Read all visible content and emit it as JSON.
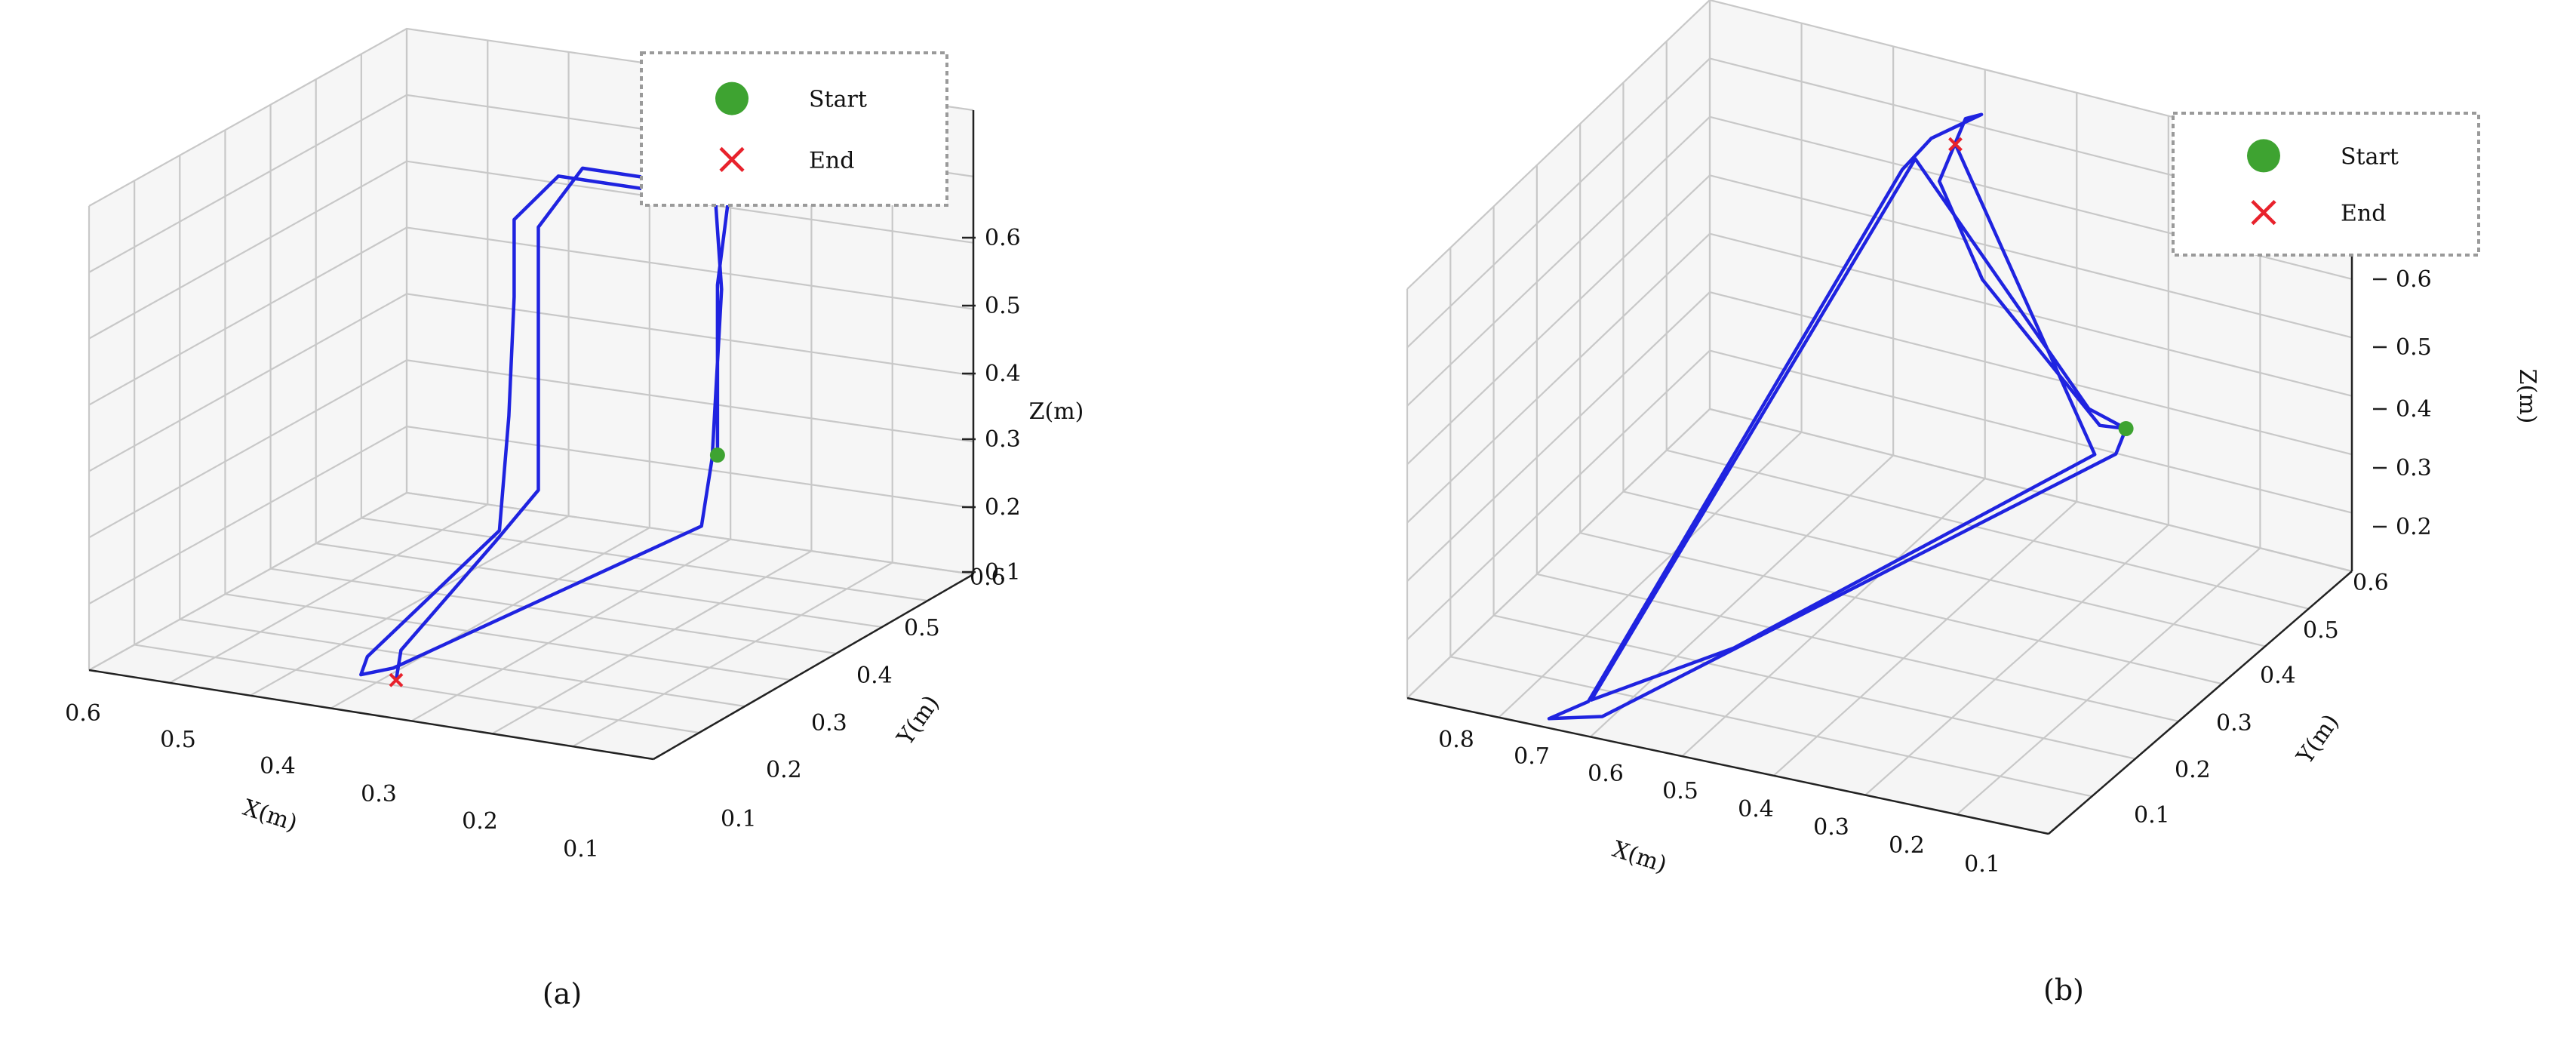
{
  "colors": {
    "trajectory": "#1f23e0",
    "start": "#3ea331",
    "end": "#e8222c",
    "pane": "#ececec",
    "grid": "#c8c8c8"
  },
  "chart_data": [
    {
      "type": "line",
      "subtype": "3d-trajectory",
      "panel_label": "(a)",
      "xlabel": "X(m)",
      "ylabel": "Y(m)",
      "zlabel": "Z(m)",
      "x_ticks": [
        "0.6",
        "0.5",
        "0.4",
        "0.3",
        "0.2",
        "0.1"
      ],
      "y_ticks": [
        "0.1",
        "0.2",
        "0.3",
        "0.4",
        "0.5",
        "0.6"
      ],
      "z_ticks": [
        "0.6",
        "0.5",
        "0.4",
        "0.3",
        "0.2",
        "0.1"
      ],
      "xlim": [
        0.05,
        0.65
      ],
      "ylim": [
        0.05,
        0.65
      ],
      "zlim": [
        0.05,
        0.65
      ],
      "grid": true,
      "legend": {
        "position": "top-right",
        "entries": [
          {
            "label": "Start",
            "marker": "circle"
          },
          {
            "label": "End",
            "marker": "x"
          }
        ]
      },
      "start": {
        "x": 0.18,
        "y": 0.4,
        "z": 0.28
      },
      "end": {
        "x": 0.38,
        "y": 0.15,
        "z": 0.05
      },
      "trajectory": [
        [
          0.18,
          0.4,
          0.28
        ],
        [
          0.18,
          0.4,
          0.5
        ],
        [
          0.18,
          0.42,
          0.6
        ],
        [
          0.36,
          0.42,
          0.6
        ],
        [
          0.39,
          0.39,
          0.55
        ],
        [
          0.39,
          0.39,
          0.45
        ],
        [
          0.39,
          0.38,
          0.3
        ],
        [
          0.4,
          0.38,
          0.15
        ],
        [
          0.45,
          0.22,
          0.04
        ],
        [
          0.44,
          0.19,
          0.03
        ],
        [
          0.4,
          0.18,
          0.05
        ],
        [
          0.18,
          0.37,
          0.2
        ],
        [
          0.18,
          0.39,
          0.28
        ],
        [
          0.17,
          0.39,
          0.5
        ],
        [
          0.2,
          0.43,
          0.61
        ],
        [
          0.34,
          0.43,
          0.61
        ],
        [
          0.37,
          0.4,
          0.54
        ],
        [
          0.37,
          0.4,
          0.2
        ],
        [
          0.41,
          0.39,
          0.13
        ],
        [
          0.42,
          0.23,
          0.05
        ],
        [
          0.38,
          0.15,
          0.05
        ]
      ]
    },
    {
      "type": "line",
      "subtype": "3d-trajectory",
      "panel_label": "(b)",
      "xlabel": "X(m)",
      "ylabel": "Y(m)",
      "zlabel": "Z(m)",
      "x_ticks": [
        "0.8",
        "0.7",
        "0.6",
        "0.5",
        "0.4",
        "0.3",
        "0.2",
        "0.1"
      ],
      "y_ticks": [
        "0.1",
        "0.2",
        "0.3",
        "0.4",
        "0.5",
        "0.6"
      ],
      "z_ticks": [
        "0.6",
        "0.5",
        "0.4",
        "0.3",
        "0.2"
      ],
      "xlim": [
        0.05,
        0.85
      ],
      "ylim": [
        0.05,
        0.65
      ],
      "zlim": [
        0.15,
        0.65
      ],
      "grid": true,
      "legend": {
        "position": "top-right",
        "entries": [
          {
            "label": "Start",
            "marker": "circle"
          },
          {
            "label": "End",
            "marker": "x"
          }
        ]
      },
      "start": {
        "x": 0.3,
        "y": 0.6,
        "z": 0.29
      },
      "end": {
        "x": 0.5,
        "y": 0.58,
        "z": 0.6
      },
      "trajectory": [
        [
          0.3,
          0.6,
          0.29
        ],
        [
          0.32,
          0.58,
          0.3
        ],
        [
          0.46,
          0.57,
          0.45
        ],
        [
          0.52,
          0.58,
          0.55
        ],
        [
          0.5,
          0.6,
          0.62
        ],
        [
          0.48,
          0.6,
          0.63
        ],
        [
          0.53,
          0.58,
          0.6
        ],
        [
          0.56,
          0.57,
          0.56
        ],
        [
          0.75,
          0.25,
          0.05
        ],
        [
          0.78,
          0.22,
          0.04
        ],
        [
          0.72,
          0.23,
          0.05
        ],
        [
          0.3,
          0.58,
          0.27
        ],
        [
          0.3,
          0.6,
          0.29
        ],
        [
          0.34,
          0.59,
          0.31
        ],
        [
          0.55,
          0.58,
          0.57
        ],
        [
          0.74,
          0.24,
          0.06
        ],
        [
          0.6,
          0.3,
          0.12
        ],
        [
          0.32,
          0.57,
          0.27
        ],
        [
          0.5,
          0.58,
          0.6
        ]
      ]
    }
  ]
}
